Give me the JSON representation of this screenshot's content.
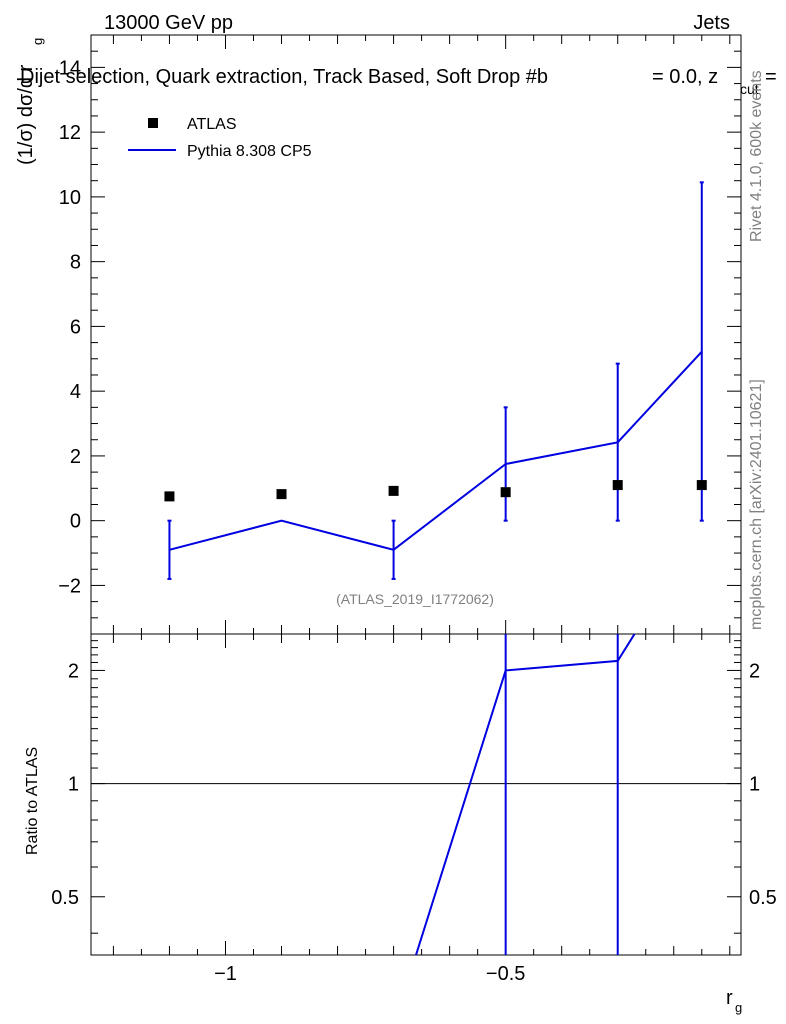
{
  "header": {
    "energy_label": "13000 GeV pp",
    "category_label": "Jets",
    "selection_title": "Dijet selection, Quark extraction, Track Based, Soft Drop #b",
    "beta_text": "= 0.0, z",
    "zcut_sub": "cut",
    "zcut_eq": "=",
    "watermark": "(ATLAS_2019_I1772062)",
    "side_rivet": "Rivet 4.1.0,  600k events",
    "side_mcplots": "mcplots.cern.ch [arXiv:2401.10621]"
  },
  "chart_data": [
    {
      "type": "scatter",
      "panel": "main",
      "ylabel": "(1/σ) dσ/d r",
      "ylabel_sub": "g",
      "xlim": [
        -1.24,
        -0.08
      ],
      "ylim": [
        -3.5,
        15.0
      ],
      "y_ticks": [
        -2,
        0,
        2,
        4,
        6,
        8,
        10,
        12,
        14
      ],
      "y_tick_labels": [
        "−2",
        "0",
        "2",
        "4",
        "6",
        "8",
        "10",
        "12",
        "14"
      ],
      "legend_position": "top-left",
      "series": [
        {
          "name": "ATLAS",
          "style": "square-markers",
          "color": "#000000",
          "x": [
            -1.1,
            -0.9,
            -0.7,
            -0.5,
            -0.3,
            -0.15
          ],
          "y": [
            0.75,
            0.82,
            0.92,
            0.88,
            1.1,
            1.1
          ]
        },
        {
          "name": "Pythia 8.308 CP5",
          "style": "line",
          "color": "#0000e0",
          "x": [
            -1.1,
            -0.9,
            -0.7,
            -0.5,
            -0.3,
            -0.15
          ],
          "y": [
            -0.9,
            0.0,
            -0.9,
            1.75,
            2.42,
            5.22
          ],
          "err_low": [
            -1.8,
            0.0,
            -1.8,
            0.0,
            0.0,
            0.0
          ],
          "err_high": [
            0.0,
            0.0,
            0.0,
            3.5,
            4.85,
            10.45
          ]
        }
      ]
    },
    {
      "type": "line",
      "panel": "ratio",
      "ylabel": "Ratio to ATLAS",
      "xlabel": "r",
      "xlabel_sub": "g",
      "xlim": [
        -1.24,
        -0.08
      ],
      "ylim": [
        0.35,
        2.5
      ],
      "y_scale": "log",
      "x_ticks": [
        -1.0,
        -0.5
      ],
      "x_tick_labels": [
        "−1",
        "−0.5"
      ],
      "y_ticks": [
        0.5,
        1,
        2
      ],
      "y_tick_labels": [
        "0.5",
        "1",
        "2"
      ],
      "reference_line": 1.0,
      "series": [
        {
          "name": "Pythia 8.308 CP5",
          "color": "#0000e0",
          "x": [
            -0.66,
            -0.5,
            -0.3,
            -0.27
          ],
          "y": [
            0.35,
            2.0,
            2.12,
            2.5
          ],
          "band_x": [
            -0.5,
            -0.3
          ],
          "band_low": [
            0.35,
            0.35
          ],
          "band_high": [
            2.5,
            2.5
          ]
        }
      ]
    }
  ]
}
